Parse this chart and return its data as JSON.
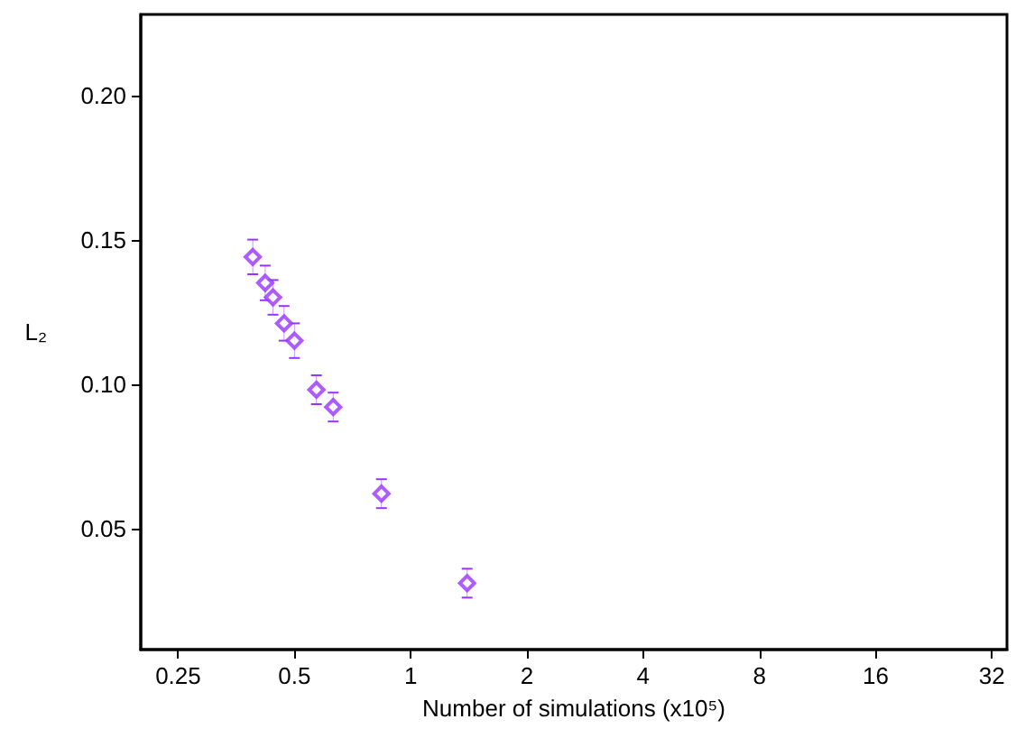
{
  "chart_data": {
    "type": "scatter",
    "xlabel": "Number of simulations (x10⁵)",
    "ylabel": "L₂",
    "x": [
      0.39,
      0.42,
      0.44,
      0.47,
      0.5,
      0.57,
      0.63,
      0.84,
      1.4
    ],
    "series": [
      {
        "color": "#9933ff",
        "values": [
          0.144,
          0.135,
          0.13,
          0.121,
          0.115,
          0.098,
          0.092,
          0.062,
          0.031
        ],
        "errors": [
          0.006,
          0.006,
          0.006,
          0.006,
          0.006,
          0.005,
          0.005,
          0.005,
          0.005
        ]
      }
    ],
    "log": "x",
    "xlim": [
      0.2,
      35
    ],
    "xticks": [
      0.25,
      0.5,
      1,
      2,
      4,
      8,
      16,
      32
    ],
    "ylim": [
      0.008,
      0.228
    ],
    "yticks": [
      0.05,
      {
        "value": 0.1,
        "label": "0.10"
      },
      0.15,
      {
        "value": 0.2,
        "label": "0.20"
      }
    ],
    "marker": "diamond",
    "grid": false
  }
}
